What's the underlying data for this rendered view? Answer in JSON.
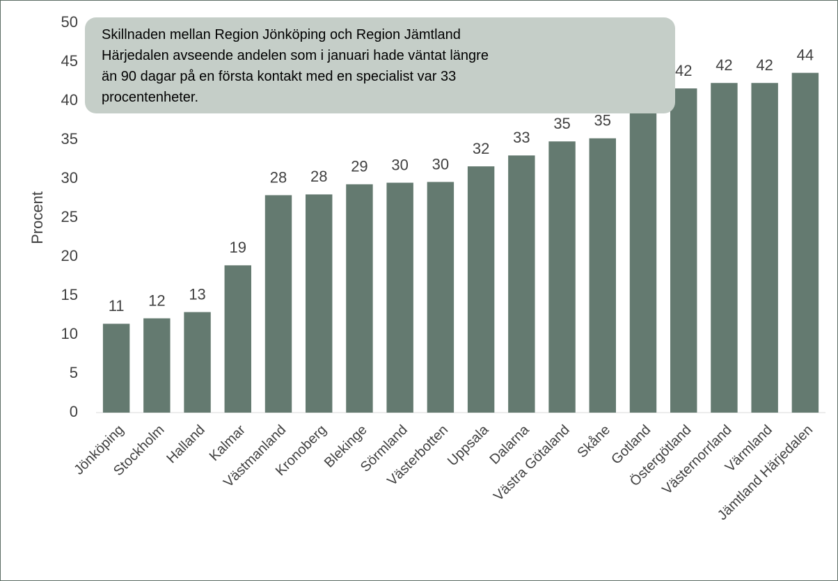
{
  "chart_data": {
    "type": "bar",
    "y_label": "Procent",
    "annotation": [
      "Skillnaden mellan Region Jönköping och Region Jämtland",
      "Härjedalen avseende andelen som i januari hade väntat längre",
      "än 90 dagar på en första kontakt med en specialist var 33",
      "procentenheter."
    ],
    "categories": [
      "Jönköping",
      "Stockholm",
      "Halland",
      "Kalmar",
      "Västmanland",
      "Kronoberg",
      "Blekinge",
      "Sörmland",
      "Västerbotten",
      "Uppsala",
      "Dalarna",
      "Västra Götaland",
      "Skåne",
      "Gotland",
      "Östergötland",
      "Västernorrland",
      "Värmland",
      "Jämtland Härjedalen"
    ],
    "values": [
      11.4,
      12.1,
      12.9,
      18.9,
      27.9,
      28.0,
      29.3,
      29.5,
      29.6,
      31.6,
      33.0,
      34.8,
      35.2,
      39.5,
      41.6,
      42.3,
      42.3,
      43.6
    ],
    "value_labels": [
      "11",
      "12",
      "13",
      "19",
      "28",
      "28",
      "29",
      "30",
      "30",
      "32",
      "33",
      "35",
      "35",
      null,
      "42",
      "42",
      "42",
      "44"
    ],
    "color": "#647a70",
    "ylim": [
      0,
      50
    ],
    "yticks": [
      0,
      5,
      10,
      15,
      20,
      25,
      30,
      35,
      40,
      45,
      50
    ],
    "grid": false
  }
}
